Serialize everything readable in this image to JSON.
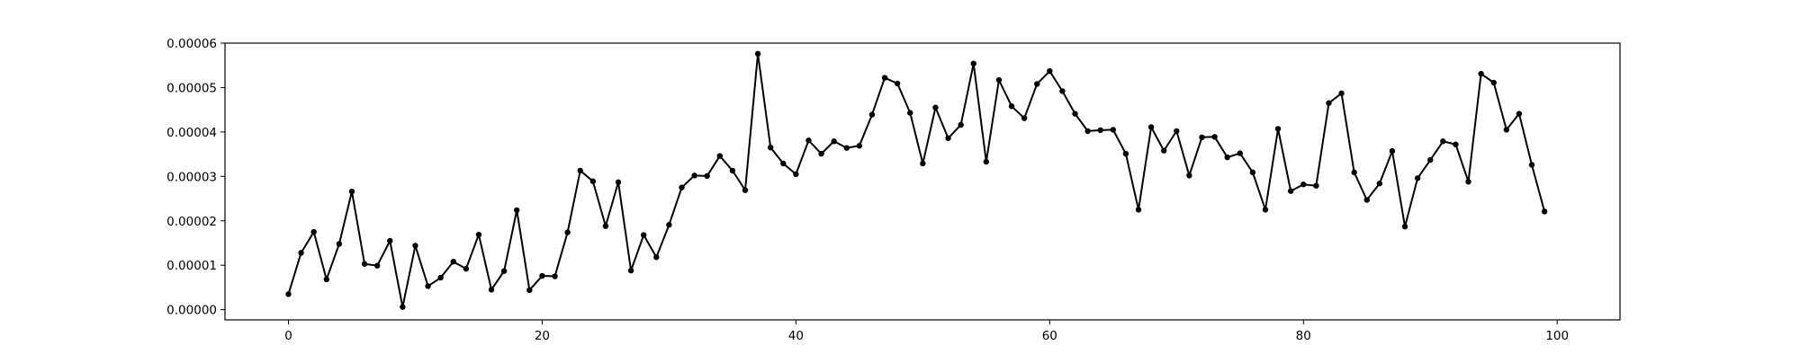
{
  "chart_data": {
    "type": "line",
    "title": "",
    "xlabel": "",
    "ylabel": "",
    "xlim": [
      -5,
      104.95
    ],
    "ylim": [
      -2.3e-06,
      6e-05
    ],
    "grid": false,
    "line_color": "#000000",
    "marker_color": "#000000",
    "x_ticks": [
      0,
      20,
      40,
      60,
      80,
      100
    ],
    "x_tick_labels": [
      "0",
      "20",
      "40",
      "60",
      "80",
      "100"
    ],
    "y_ticks": [
      0,
      1e-05,
      2e-05,
      3e-05,
      4e-05,
      5e-05,
      6e-05
    ],
    "y_tick_labels": [
      "0.00000",
      "0.00001",
      "0.00002",
      "0.00003",
      "0.00004",
      "0.00005",
      "0.00006"
    ],
    "series": [
      {
        "x": [
          0,
          1,
          2,
          3,
          4,
          5,
          6,
          7,
          8,
          9,
          10,
          11,
          12,
          13,
          14,
          15,
          16,
          17,
          18,
          19,
          20,
          21,
          22,
          23,
          24,
          25,
          26,
          27,
          28,
          29,
          30,
          31,
          32,
          33,
          34,
          35,
          36,
          37,
          38,
          39,
          40,
          41,
          42,
          43,
          44,
          45,
          46,
          47,
          48,
          49,
          50,
          51,
          52,
          53,
          54,
          55,
          56,
          57,
          58,
          59,
          60,
          61,
          62,
          63,
          64,
          65,
          66,
          67,
          68,
          69,
          70,
          71,
          72,
          73,
          74,
          75,
          76,
          77,
          78,
          79,
          80,
          81,
          82,
          83,
          84,
          85,
          86,
          87,
          88,
          89,
          90,
          91,
          92,
          93,
          94,
          95,
          96,
          97,
          98,
          99
        ],
        "values": [
          3.5e-06,
          1.28e-05,
          1.75e-05,
          6.8e-06,
          1.48e-05,
          2.66e-05,
          1.03e-05,
          9.9e-06,
          1.55e-05,
          6e-07,
          1.44e-05,
          5.3e-06,
          7.2e-06,
          1.08e-05,
          9.2e-06,
          1.69e-05,
          4.5e-06,
          8.7e-06,
          2.24e-05,
          4.4e-06,
          7.6e-06,
          7.5e-06,
          1.74e-05,
          3.13e-05,
          2.89e-05,
          1.88e-05,
          2.87e-05,
          8.8e-06,
          1.68e-05,
          1.18e-05,
          1.91e-05,
          2.75e-05,
          3.02e-05,
          3.01e-05,
          3.46e-05,
          3.13e-05,
          2.69e-05,
          5.76e-05,
          3.65e-05,
          3.29e-05,
          3.05e-05,
          3.81e-05,
          3.51e-05,
          3.79e-05,
          3.64e-05,
          3.69e-05,
          4.39e-05,
          5.22e-05,
          5.09e-05,
          4.43e-05,
          3.29e-05,
          4.55e-05,
          3.86e-05,
          4.16e-05,
          5.54e-05,
          3.33e-05,
          5.17e-05,
          4.58e-05,
          4.31e-05,
          5.08e-05,
          5.37e-05,
          4.92e-05,
          4.41e-05,
          4.02e-05,
          4.04e-05,
          4.05e-05,
          3.51e-05,
          2.25e-05,
          4.11e-05,
          3.58e-05,
          4.02e-05,
          3.02e-05,
          3.88e-05,
          3.89e-05,
          3.43e-05,
          3.52e-05,
          3.09e-05,
          2.25e-05,
          4.07e-05,
          2.67e-05,
          2.82e-05,
          2.79e-05,
          4.65e-05,
          4.87e-05,
          3.09e-05,
          2.47e-05,
          2.84e-05,
          3.57e-05,
          1.87e-05,
          2.96e-05,
          3.37e-05,
          3.79e-05,
          3.72e-05,
          2.88e-05,
          5.31e-05,
          5.11e-05,
          4.05e-05,
          4.41e-05,
          3.26e-05,
          2.21e-05
        ]
      }
    ]
  }
}
